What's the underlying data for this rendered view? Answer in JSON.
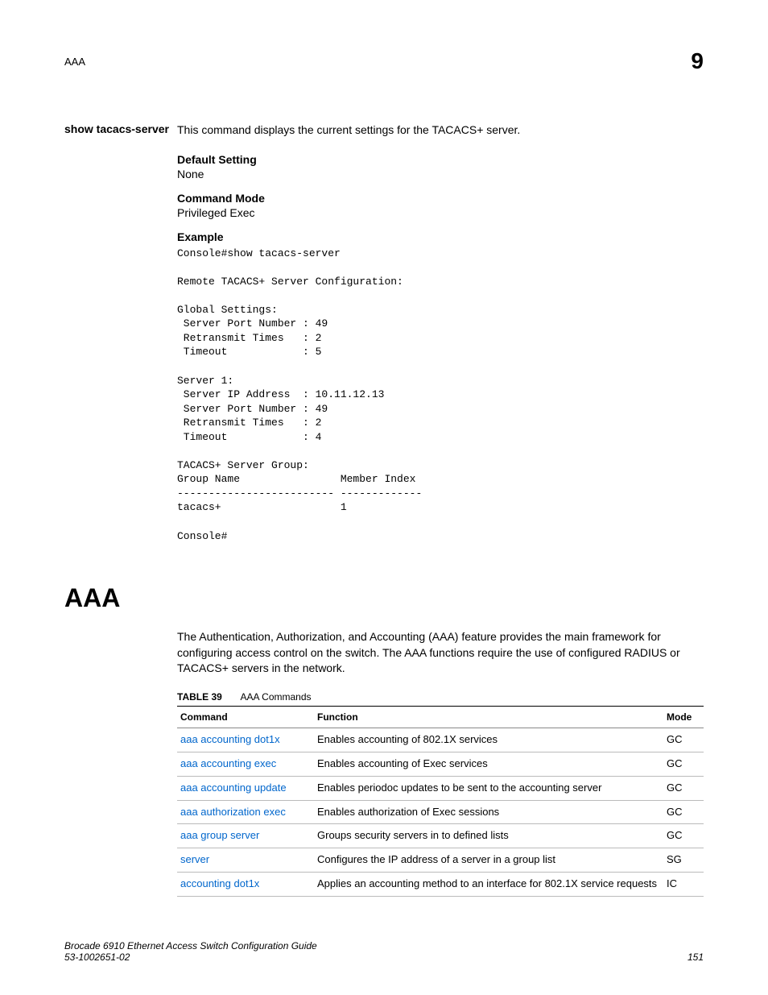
{
  "header": {
    "left": "AAA",
    "chapter": "9"
  },
  "command": {
    "name": "show tacacs-server",
    "description": "This command displays the current settings for the TACACS+ server.",
    "default_setting_label": "Default Setting",
    "default_setting_value": "None",
    "command_mode_label": "Command Mode",
    "command_mode_value": "Privileged Exec",
    "example_label": "Example",
    "example_code": "Console#show tacacs-server\n\nRemote TACACS+ Server Configuration:\n\nGlobal Settings:\n Server Port Number : 49\n Retransmit Times   : 2\n Timeout            : 5\n\nServer 1:\n Server IP Address  : 10.11.12.13\n Server Port Number : 49\n Retransmit Times   : 2\n Timeout            : 4\n\nTACACS+ Server Group:\nGroup Name                Member Index\n------------------------- -------------\ntacacs+                   1\n\nConsole#"
  },
  "section": {
    "title": "AAA",
    "intro": "The Authentication, Authorization, and Accounting (AAA) feature provides the main framework for configuring access control on the switch. The AAA functions require the use of configured RADIUS or TACACS+ servers in the network."
  },
  "table": {
    "label_bold": "TABLE 39",
    "label_caption": "AAA Commands",
    "headers": {
      "command": "Command",
      "function": "Function",
      "mode": "Mode"
    },
    "rows": [
      {
        "cmd": "aaa accounting dot1x",
        "func": "Enables accounting of 802.1X services",
        "mode": "GC"
      },
      {
        "cmd": "aaa accounting exec",
        "func": "Enables accounting of Exec services",
        "mode": "GC"
      },
      {
        "cmd": "aaa accounting update",
        "func": "Enables periodoc updates to be sent to the accounting server",
        "mode": "GC"
      },
      {
        "cmd": "aaa authorization exec",
        "func": "Enables authorization of Exec sessions",
        "mode": "GC"
      },
      {
        "cmd": "aaa group server",
        "func": "Groups security servers in to defined lists",
        "mode": "GC"
      },
      {
        "cmd": "server",
        "func": "Configures the IP address of a server in a group list",
        "mode": "SG"
      },
      {
        "cmd": "accounting dot1x",
        "func": "Applies an accounting method to an interface for 802.1X service requests",
        "mode": "IC"
      }
    ]
  },
  "footer": {
    "line1": "Brocade 6910 Ethernet Access Switch Configuration Guide",
    "line2": "53-1002651-02",
    "page": "151"
  }
}
